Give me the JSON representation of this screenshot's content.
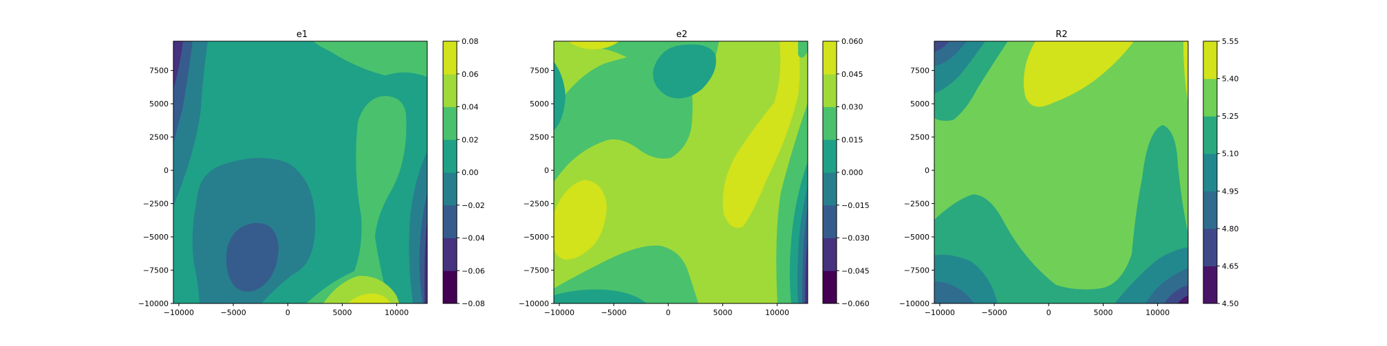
{
  "chart_data": [
    {
      "type": "contourf",
      "title": "e1",
      "xlim": [
        -10500,
        12800
      ],
      "ylim": [
        -10000,
        9700
      ],
      "xticks": [
        "−10000",
        "−5000",
        "0",
        "5000",
        "10000"
      ],
      "xtick_values": [
        -10000,
        -5000,
        0,
        5000,
        10000
      ],
      "yticks": [
        "−10000",
        "−7500",
        "−5000",
        "−2500",
        "0",
        "2500",
        "5000",
        "7500"
      ],
      "ytick_values": [
        -10000,
        -7500,
        -5000,
        -2500,
        0,
        2500,
        5000,
        7500
      ],
      "colorbar_ticks": [
        "−0.08",
        "−0.06",
        "−0.04",
        "−0.02",
        "0.00",
        "0.02",
        "0.04",
        "0.06",
        "0.08"
      ],
      "levels": [
        -0.08,
        -0.06,
        -0.04,
        -0.02,
        0.0,
        0.02,
        0.04,
        0.06,
        0.08
      ],
      "colors": [
        "#440154",
        "#46327e",
        "#365c8d",
        "#277f8e",
        "#1fa187",
        "#4ac16d",
        "#a0da39",
        "#d2e21b"
      ]
    },
    {
      "type": "contourf",
      "title": "e2",
      "xlim": [
        -10500,
        12800
      ],
      "ylim": [
        -10000,
        9700
      ],
      "xticks": [
        "−10000",
        "−5000",
        "0",
        "5000",
        "10000"
      ],
      "xtick_values": [
        -10000,
        -5000,
        0,
        5000,
        10000
      ],
      "yticks": [
        "−10000",
        "−7500",
        "−5000",
        "−2500",
        "0",
        "2500",
        "5000",
        "7500"
      ],
      "ytick_values": [
        -10000,
        -7500,
        -5000,
        -2500,
        0,
        2500,
        5000,
        7500
      ],
      "colorbar_ticks": [
        "−0.060",
        "−0.045",
        "−0.030",
        "−0.015",
        "0.000",
        "0.015",
        "0.030",
        "0.045",
        "0.060"
      ],
      "levels": [
        -0.06,
        -0.045,
        -0.03,
        -0.015,
        0.0,
        0.015,
        0.03,
        0.045,
        0.06
      ],
      "colors": [
        "#440154",
        "#46327e",
        "#365c8d",
        "#277f8e",
        "#1fa187",
        "#4ac16d",
        "#a0da39",
        "#d2e21b"
      ]
    },
    {
      "type": "contourf",
      "title": "R2",
      "xlim": [
        -10500,
        12800
      ],
      "ylim": [
        -10000,
        9700
      ],
      "xticks": [
        "−10000",
        "−5000",
        "0",
        "5000",
        "10000"
      ],
      "xtick_values": [
        -10000,
        -5000,
        0,
        5000,
        10000
      ],
      "yticks": [
        "−10000",
        "−7500",
        "−5000",
        "−2500",
        "0",
        "2500",
        "5000",
        "7500"
      ],
      "ytick_values": [
        -10000,
        -7500,
        -5000,
        -2500,
        0,
        2500,
        5000,
        7500
      ],
      "colorbar_ticks": [
        "4.50",
        "4.65",
        "4.80",
        "4.95",
        "5.10",
        "5.25",
        "5.40",
        "5.55"
      ],
      "levels": [
        4.5,
        4.65,
        4.8,
        4.95,
        5.1,
        5.25,
        5.4,
        5.55
      ],
      "colors": [
        "#481467",
        "#3e4989",
        "#2f6c8e",
        "#23888e",
        "#2aa97e",
        "#70cf57",
        "#d2e21b"
      ]
    }
  ]
}
